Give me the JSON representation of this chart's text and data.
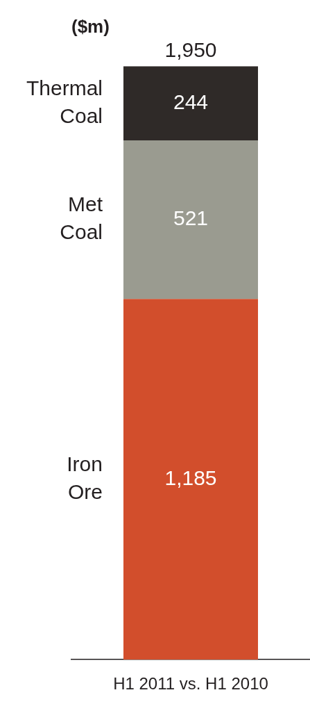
{
  "chart_data": {
    "type": "bar",
    "title": "($m)",
    "stacked": true,
    "categories": [
      "H1 2011 vs. H1 2010"
    ],
    "series": [
      {
        "name": "Iron Ore",
        "color": "#d24e2c",
        "values": [
          1185
        ],
        "value_labels": [
          "1,185"
        ]
      },
      {
        "name": "Met Coal",
        "color": "#9a9b90",
        "values": [
          521
        ],
        "value_labels": [
          "521"
        ]
      },
      {
        "name": "Thermal Coal",
        "color": "#2f2a28",
        "values": [
          244
        ],
        "value_labels": [
          "244"
        ]
      }
    ],
    "totals": [
      "1,950"
    ],
    "ylim": [
      0,
      1950
    ],
    "tick_labels": "x",
    "legend": false,
    "grid": false
  }
}
